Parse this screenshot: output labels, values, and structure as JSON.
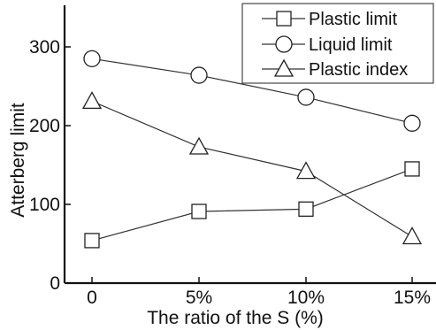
{
  "chart_data": {
    "type": "line",
    "categories": [
      "0",
      "5%",
      "10%",
      "15%"
    ],
    "xlabel": "The ratio of the S (%)",
    "ylabel": "Atterberg limit",
    "ylim": [
      0,
      350
    ],
    "yticks": [
      0,
      100,
      200,
      300
    ],
    "ytick_labels": [
      "0",
      "100",
      "200",
      "300"
    ],
    "grid": false,
    "legend_position": "top-right",
    "series": [
      {
        "name": "Plastic limit",
        "marker": "square",
        "values": [
          54,
          91,
          94,
          145
        ]
      },
      {
        "name": "Liquid limit",
        "marker": "circle",
        "values": [
          285,
          264,
          236,
          203
        ]
      },
      {
        "name": "Plastic index",
        "marker": "triangle",
        "values": [
          231,
          173,
          142,
          59
        ]
      }
    ]
  }
}
